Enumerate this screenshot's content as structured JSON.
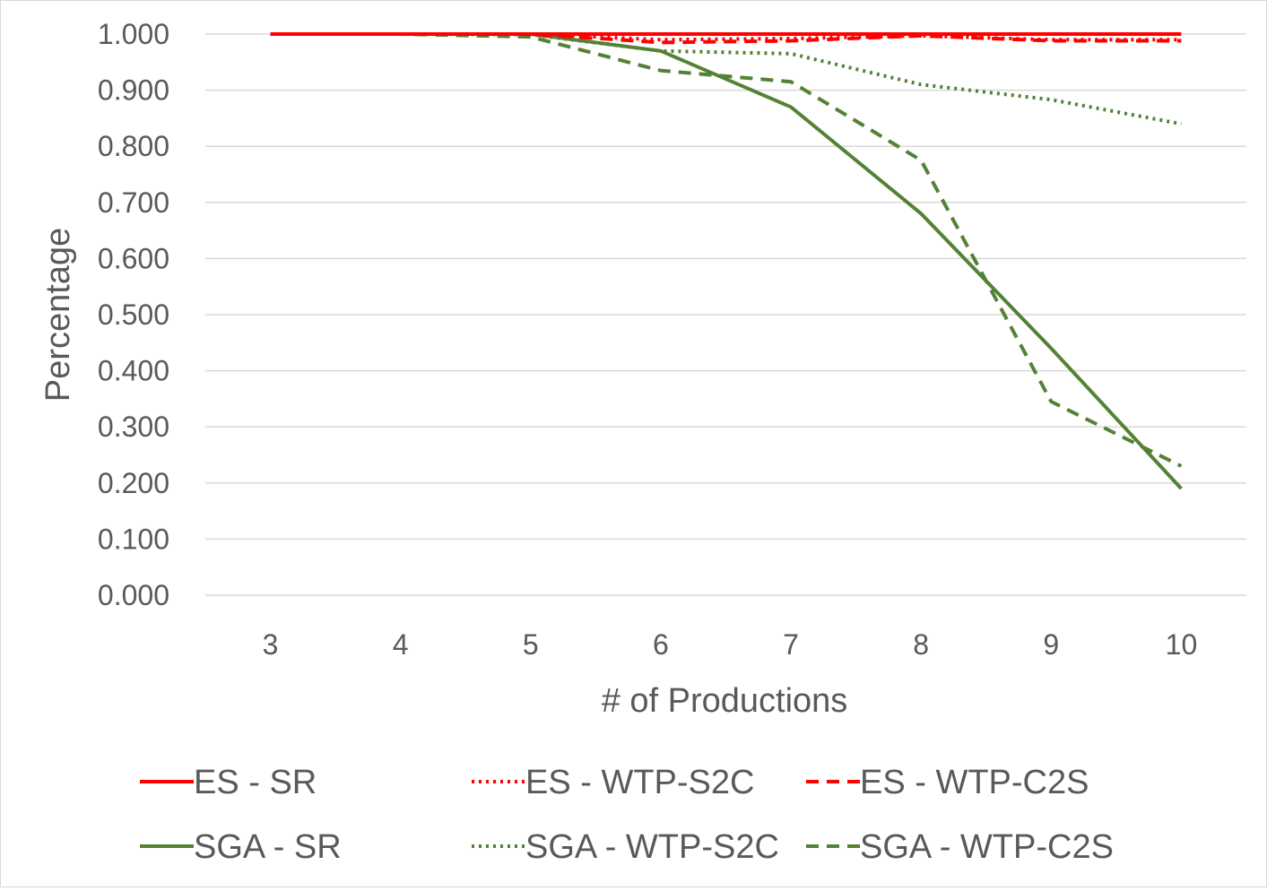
{
  "chart_data": {
    "type": "line",
    "title": "",
    "xlabel": "# of Productions",
    "ylabel": "Percentage",
    "categories": [
      "3",
      "4",
      "5",
      "6",
      "7",
      "8",
      "9",
      "10"
    ],
    "ylim": [
      0,
      1
    ],
    "yticks": [
      "0.000",
      "0.100",
      "0.200",
      "0.300",
      "0.400",
      "0.500",
      "0.600",
      "0.700",
      "0.800",
      "0.900",
      "1.000"
    ],
    "grid": "horizontal",
    "legend_position": "bottom",
    "series": [
      {
        "name": "ES - SR",
        "color": "#ff0000",
        "dash": "solid",
        "values": [
          1.0,
          1.0,
          1.0,
          1.0,
          1.0,
          1.0,
          1.0,
          1.0
        ]
      },
      {
        "name": "ES - WTP-S2C",
        "color": "#ff0000",
        "dash": "dotted",
        "values": [
          1.0,
          1.0,
          1.0,
          0.99,
          0.992,
          0.997,
          0.99,
          0.99
        ]
      },
      {
        "name": "ES - WTP-C2S",
        "color": "#ff0000",
        "dash": "dashed",
        "values": [
          1.0,
          1.0,
          1.0,
          0.985,
          0.988,
          0.997,
          0.988,
          0.988
        ]
      },
      {
        "name": "SGA - SR",
        "color": "#548235",
        "dash": "solid",
        "values": [
          1.0,
          1.0,
          1.0,
          0.97,
          0.87,
          0.68,
          0.44,
          0.19
        ]
      },
      {
        "name": "SGA - WTP-S2C",
        "color": "#548235",
        "dash": "dotted",
        "values": [
          1.0,
          1.0,
          0.999,
          0.97,
          0.965,
          0.91,
          0.883,
          0.84
        ]
      },
      {
        "name": "SGA - WTP-C2S",
        "color": "#548235",
        "dash": "dashed",
        "values": [
          1.0,
          1.0,
          0.995,
          0.935,
          0.915,
          0.775,
          0.345,
          0.23
        ]
      }
    ]
  }
}
